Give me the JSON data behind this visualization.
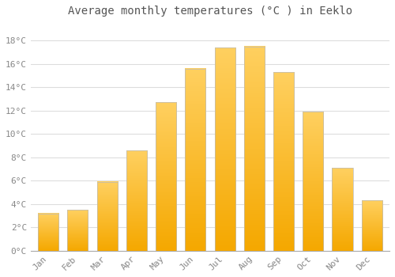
{
  "title": "Average monthly temperatures (°C ) in Eeklo",
  "months": [
    "Jan",
    "Feb",
    "Mar",
    "Apr",
    "May",
    "Jun",
    "Jul",
    "Aug",
    "Sep",
    "Oct",
    "Nov",
    "Dec"
  ],
  "temperatures": [
    3.2,
    3.5,
    5.9,
    8.6,
    12.7,
    15.6,
    17.4,
    17.5,
    15.3,
    11.9,
    7.1,
    4.3
  ],
  "bar_color_bottom": "#F5A800",
  "bar_color_top": "#FFD060",
  "background_color": "#FFFFFF",
  "plot_bg_color": "#FFFFFF",
  "grid_color": "#DDDDDD",
  "ytick_labels": [
    "0°C",
    "2°C",
    "4°C",
    "6°C",
    "8°C",
    "10°C",
    "12°C",
    "14°C",
    "16°C",
    "18°C"
  ],
  "ytick_values": [
    0,
    2,
    4,
    6,
    8,
    10,
    12,
    14,
    16,
    18
  ],
  "ylim": [
    0,
    19.5
  ],
  "tick_label_color": "#888888",
  "title_color": "#555555",
  "title_fontsize": 10,
  "tick_fontsize": 8,
  "font_family": "monospace",
  "bar_width": 0.7,
  "bar_edge_color": "#BBBBBB",
  "bar_edge_width": 0.5
}
